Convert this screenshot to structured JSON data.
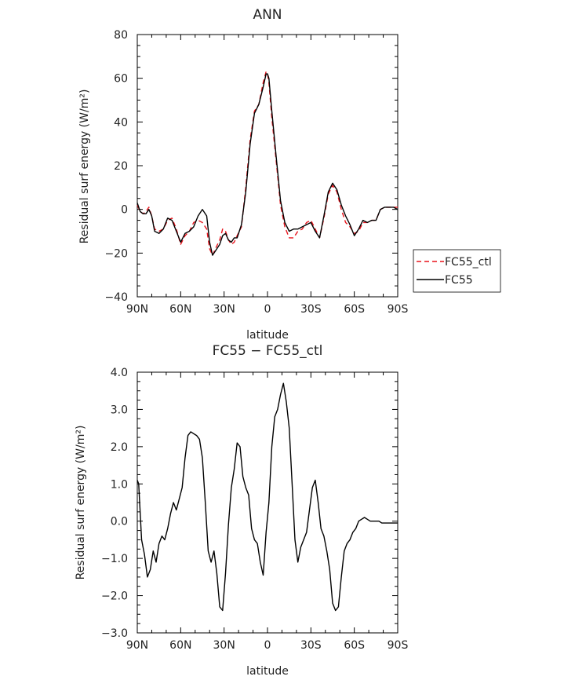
{
  "chart_data": [
    {
      "type": "line",
      "title": "ANN",
      "xlabel": "latitude",
      "ylabel": "Residual surf energy (W/m²)",
      "xlim": [
        90,
        -90
      ],
      "ylim": [
        -40,
        80
      ],
      "xticks": [
        90,
        60,
        30,
        0,
        -30,
        -60,
        -90
      ],
      "xticklabels": [
        "90N",
        "60N",
        "30N",
        "0",
        "30S",
        "60S",
        "90S"
      ],
      "yticks": [
        -40,
        -20,
        0,
        20,
        40,
        60,
        80
      ],
      "yticklabels": [
        "−40",
        "−20",
        "0",
        "20",
        "40",
        "60",
        "80"
      ],
      "legend": "right",
      "series": [
        {
          "name": "FC55_ctl",
          "color": "#e8141c",
          "dash": "dashed",
          "x": [
            90,
            88,
            86,
            84,
            82,
            80,
            78,
            75,
            72,
            69,
            66,
            63,
            60,
            57,
            54,
            51,
            48,
            45,
            42,
            40,
            38,
            36,
            33,
            31,
            29,
            27,
            25,
            23,
            21,
            18,
            15,
            12,
            9,
            6,
            3,
            1,
            0,
            -1,
            -3,
            -6,
            -9,
            -12,
            -15,
            -18,
            -21,
            -24,
            -27,
            -30,
            -33,
            -36,
            -39,
            -42,
            -45,
            -48,
            -51,
            -54,
            -57,
            -60,
            -63,
            -66,
            -69,
            -72,
            -75,
            -78,
            -81,
            -84,
            -87,
            -90
          ],
          "y": [
            2,
            -1,
            -2,
            -1,
            1,
            -3,
            -9,
            -10,
            -9,
            -5,
            -4,
            -9,
            -16,
            -12,
            -10,
            -6,
            -5,
            -6,
            -9,
            -18,
            -21,
            -18,
            -14,
            -9,
            -10,
            -14,
            -16,
            -15,
            -12,
            -8,
            10,
            32,
            45,
            48,
            58,
            63,
            62,
            58,
            42,
            22,
            2,
            -8,
            -13,
            -13,
            -10,
            -9,
            -6,
            -5,
            -9,
            -13,
            -4,
            7,
            11,
            8,
            0,
            -6,
            -8,
            -11,
            -10,
            -6,
            -6,
            -5,
            -5,
            0,
            1,
            1,
            1,
            1
          ]
        },
        {
          "name": "FC55",
          "color": "#000000",
          "dash": "solid",
          "x": [
            90,
            88,
            86,
            84,
            82,
            80,
            78,
            75,
            72,
            69,
            66,
            63,
            60,
            57,
            54,
            51,
            48,
            45,
            42,
            40,
            38,
            36,
            33,
            31,
            29,
            27,
            25,
            23,
            21,
            18,
            15,
            12,
            9,
            6,
            3,
            1,
            0,
            -1,
            -3,
            -6,
            -9,
            -12,
            -15,
            -18,
            -21,
            -24,
            -27,
            -30,
            -33,
            -36,
            -39,
            -42,
            -45,
            -48,
            -51,
            -54,
            -57,
            -60,
            -63,
            -66,
            -69,
            -72,
            -75,
            -78,
            -81,
            -84,
            -87,
            -90
          ],
          "y": [
            3,
            -1,
            -2,
            -2,
            0,
            -3,
            -10,
            -11,
            -9,
            -4,
            -5,
            -10,
            -15,
            -11,
            -10,
            -8,
            -3,
            0,
            -3,
            -15,
            -21,
            -19,
            -16,
            -12,
            -11,
            -14,
            -15,
            -13,
            -13,
            -7,
            8,
            30,
            44,
            48,
            56,
            62,
            62,
            60,
            45,
            24,
            4,
            -6,
            -10,
            -9,
            -9,
            -8,
            -7,
            -6,
            -10,
            -13,
            -3,
            8,
            12,
            9,
            2,
            -3,
            -7,
            -12,
            -9,
            -5,
            -6,
            -5,
            -5,
            0,
            1,
            1,
            1,
            0
          ]
        }
      ]
    },
    {
      "type": "line",
      "title": "FC55 − FC55_ctl",
      "xlabel": "latitude",
      "ylabel": "Residual surf energy (W/m²)",
      "xlim": [
        90,
        -90
      ],
      "ylim": [
        -3,
        4
      ],
      "xticks": [
        90,
        60,
        30,
        0,
        -30,
        -60,
        -90
      ],
      "xticklabels": [
        "90N",
        "60N",
        "30N",
        "0",
        "30S",
        "60S",
        "90S"
      ],
      "yticks": [
        -3,
        -2,
        -1,
        0,
        1,
        2,
        3,
        4
      ],
      "yticklabels": [
        "−3.0",
        "−2.0",
        "−1.0",
        "0.0",
        "1.0",
        "2.0",
        "3.0",
        "4.0"
      ],
      "series": [
        {
          "name": "",
          "color": "#000000",
          "dash": "solid",
          "x": [
            90,
            89,
            87,
            85,
            83,
            81,
            79,
            77,
            75,
            73,
            71,
            69,
            67,
            65,
            63,
            61,
            59,
            57,
            55,
            53,
            51,
            49,
            47,
            45,
            43,
            41,
            39,
            37,
            35,
            33,
            31,
            29,
            27,
            25,
            23,
            21,
            19,
            17,
            15,
            13,
            11,
            9,
            7,
            5,
            3,
            1,
            -1,
            -3,
            -5,
            -7,
            -9,
            -11,
            -13,
            -15,
            -17,
            -19,
            -21,
            -23,
            -25,
            -27,
            -29,
            -31,
            -33,
            -35,
            -37,
            -39,
            -41,
            -43,
            -45,
            -47,
            -49,
            -51,
            -53,
            -55,
            -57,
            -59,
            -61,
            -63,
            -65,
            -67,
            -69,
            -71,
            -73,
            -75,
            -77,
            -79,
            -81,
            -83,
            -85,
            -87,
            -90
          ],
          "y": [
            1.1,
            1.0,
            -0.5,
            -0.9,
            -1.5,
            -1.3,
            -0.8,
            -1.1,
            -0.6,
            -0.4,
            -0.5,
            -0.2,
            0.2,
            0.5,
            0.3,
            0.6,
            0.9,
            1.7,
            2.3,
            2.4,
            2.35,
            2.3,
            2.2,
            1.7,
            0.5,
            -0.8,
            -1.1,
            -0.8,
            -1.4,
            -2.3,
            -2.4,
            -1.4,
            -0.1,
            0.9,
            1.4,
            2.1,
            2.0,
            1.2,
            0.9,
            0.7,
            -0.2,
            -0.5,
            -0.6,
            -1.1,
            -1.45,
            -0.3,
            0.5,
            2.0,
            2.8,
            3.0,
            3.4,
            3.7,
            3.2,
            2.5,
            1.0,
            -0.5,
            -1.1,
            -0.7,
            -0.5,
            -0.3,
            0.3,
            0.9,
            1.1,
            0.5,
            -0.2,
            -0.4,
            -0.8,
            -1.3,
            -2.2,
            -2.4,
            -2.3,
            -1.5,
            -0.8,
            -0.6,
            -0.5,
            -0.3,
            -0.2,
            0.0,
            0.05,
            0.1,
            0.05,
            0.0,
            0.0,
            0.0,
            0.0,
            -0.05,
            -0.05,
            -0.05,
            -0.05,
            -0.05,
            -0.05
          ]
        }
      ]
    }
  ]
}
